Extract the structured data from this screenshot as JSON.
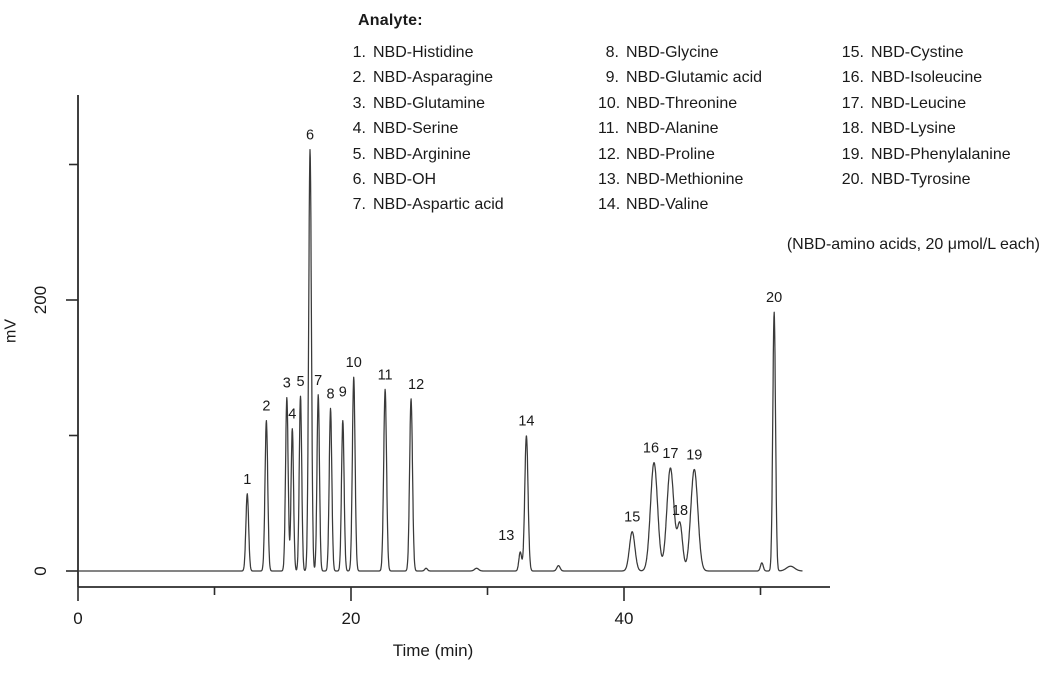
{
  "legend": {
    "heading": "Analyte:",
    "columns": [
      [
        {
          "num": "1.",
          "name": "NBD-Histidine"
        },
        {
          "num": "2.",
          "name": "NBD-Asparagine"
        },
        {
          "num": "3.",
          "name": "NBD-Glutamine"
        },
        {
          "num": "4.",
          "name": "NBD-Serine"
        },
        {
          "num": "5.",
          "name": "NBD-Arginine"
        },
        {
          "num": "6.",
          "name": "NBD-OH"
        },
        {
          "num": "7.",
          "name": "NBD-Aspartic acid"
        }
      ],
      [
        {
          "num": "8.",
          "name": "NBD-Glycine"
        },
        {
          "num": "9.",
          "name": "NBD-Glutamic acid"
        },
        {
          "num": "10.",
          "name": "NBD-Threonine"
        },
        {
          "num": "11.",
          "name": "NBD-Alanine"
        },
        {
          "num": "12.",
          "name": "NBD-Proline"
        },
        {
          "num": "13.",
          "name": "NBD-Methionine"
        },
        {
          "num": "14.",
          "name": "NBD-Valine"
        }
      ],
      [
        {
          "num": "15.",
          "name": "NBD-Cystine"
        },
        {
          "num": "16.",
          "name": "NBD-Isoleucine"
        },
        {
          "num": "17.",
          "name": "NBD-Leucine"
        },
        {
          "num": "18.",
          "name": "NBD-Lysine"
        },
        {
          "num": "19.",
          "name": "NBD-Phenylalanine"
        },
        {
          "num": "20.",
          "name": "NBD-Tyrosine"
        }
      ]
    ]
  },
  "note": "(NBD-amino acids, 20 μmol/L each)",
  "chart_data": {
    "type": "line",
    "kind": "chromatogram",
    "xlabel": "Time (min)",
    "ylabel": "mV",
    "xlim": [
      0,
      55
    ],
    "ylim": [
      0,
      351
    ],
    "grid": false,
    "line_color": "#3a3a3a",
    "axis_color": "#2b2b2b",
    "x_axis_ticks": [
      {
        "value": 0,
        "label": "0",
        "major": true
      },
      {
        "value": 10,
        "label": "",
        "major": false
      },
      {
        "value": 20,
        "label": "20",
        "major": true
      },
      {
        "value": 30,
        "label": "",
        "major": false
      },
      {
        "value": 40,
        "label": "40",
        "major": true
      },
      {
        "value": 50,
        "label": "",
        "major": false
      }
    ],
    "y_axis_ticks": [
      {
        "value": 0,
        "label": "0"
      },
      {
        "value": 100,
        "label": ""
      },
      {
        "value": 200,
        "label": "200"
      },
      {
        "value": 300,
        "label": ""
      }
    ],
    "baseline_mv": 0,
    "trace_end_min": 53.1,
    "peaks": [
      {
        "id": 1,
        "analyte": "NBD-Histidine",
        "time_min": 12.4,
        "height_mv": 57,
        "width_sigma_min": 0.1
      },
      {
        "id": 2,
        "analyte": "NBD-Asparagine",
        "time_min": 13.8,
        "height_mv": 111,
        "width_sigma_min": 0.1
      },
      {
        "id": 3,
        "analyte": "NBD-Glutamine",
        "time_min": 15.3,
        "height_mv": 128,
        "width_sigma_min": 0.095
      },
      {
        "id": 4,
        "analyte": "NBD-Serine",
        "time_min": 15.7,
        "height_mv": 105,
        "width_sigma_min": 0.09
      },
      {
        "id": 5,
        "analyte": "NBD-Arginine",
        "time_min": 16.3,
        "height_mv": 129,
        "width_sigma_min": 0.09
      },
      {
        "id": 6,
        "analyte": "NBD-OH",
        "time_min": 17.0,
        "height_mv": 311,
        "width_sigma_min": 0.1
      },
      {
        "id": 7,
        "analyte": "NBD-Aspartic acid",
        "time_min": 17.6,
        "height_mv": 130,
        "width_sigma_min": 0.09
      },
      {
        "id": 8,
        "analyte": "NBD-Glycine",
        "time_min": 18.5,
        "height_mv": 120,
        "width_sigma_min": 0.095
      },
      {
        "id": 9,
        "analyte": "NBD-Glutamic acid",
        "time_min": 19.4,
        "height_mv": 111,
        "width_sigma_min": 0.095,
        "label_dy": -14
      },
      {
        "id": 10,
        "analyte": "NBD-Threonine",
        "time_min": 20.2,
        "height_mv": 143,
        "width_sigma_min": 0.1
      },
      {
        "id": 11,
        "analyte": "NBD-Alanine",
        "time_min": 22.5,
        "height_mv": 134,
        "width_sigma_min": 0.105
      },
      {
        "id": 12,
        "analyte": "NBD-Proline",
        "time_min": 24.4,
        "height_mv": 127,
        "width_sigma_min": 0.105,
        "label_dx": 5
      },
      {
        "id": 13,
        "analyte": "NBD-Methionine",
        "time_min": 32.4,
        "height_mv": 14,
        "width_sigma_min": 0.1,
        "label_dx": -14,
        "label_dy": -2
      },
      {
        "id": 14,
        "analyte": "NBD-Valine",
        "time_min": 32.85,
        "height_mv": 100,
        "width_sigma_min": 0.12
      },
      {
        "id": 15,
        "analyte": "NBD-Cystine",
        "time_min": 40.6,
        "height_mv": 29,
        "width_sigma_min": 0.2
      },
      {
        "id": 16,
        "analyte": "NBD-Isoleucine",
        "time_min": 42.2,
        "height_mv": 80,
        "width_sigma_min": 0.26,
        "label_dx": -3
      },
      {
        "id": 17,
        "analyte": "NBD-Leucine",
        "time_min": 43.4,
        "height_mv": 76,
        "width_sigma_min": 0.26
      },
      {
        "id": 18,
        "analyte": "NBD-Lysine",
        "time_min": 44.1,
        "height_mv": 34,
        "width_sigma_min": 0.19
      },
      {
        "id": 19,
        "analyte": "NBD-Phenylalanine",
        "time_min": 45.15,
        "height_mv": 75,
        "width_sigma_min": 0.26
      },
      {
        "id": 20,
        "analyte": "NBD-Tyrosine",
        "time_min": 51.0,
        "height_mv": 191,
        "width_sigma_min": 0.1
      }
    ],
    "baseline_bumps": [
      {
        "time_min": 25.5,
        "height_mv": 2,
        "width_sigma_min": 0.1
      },
      {
        "time_min": 29.2,
        "height_mv": 2,
        "width_sigma_min": 0.15
      },
      {
        "time_min": 35.2,
        "height_mv": 4,
        "width_sigma_min": 0.12
      },
      {
        "time_min": 50.1,
        "height_mv": 6,
        "width_sigma_min": 0.1
      },
      {
        "time_min": 52.2,
        "height_mv": 3.5,
        "width_sigma_min": 0.3
      }
    ]
  }
}
